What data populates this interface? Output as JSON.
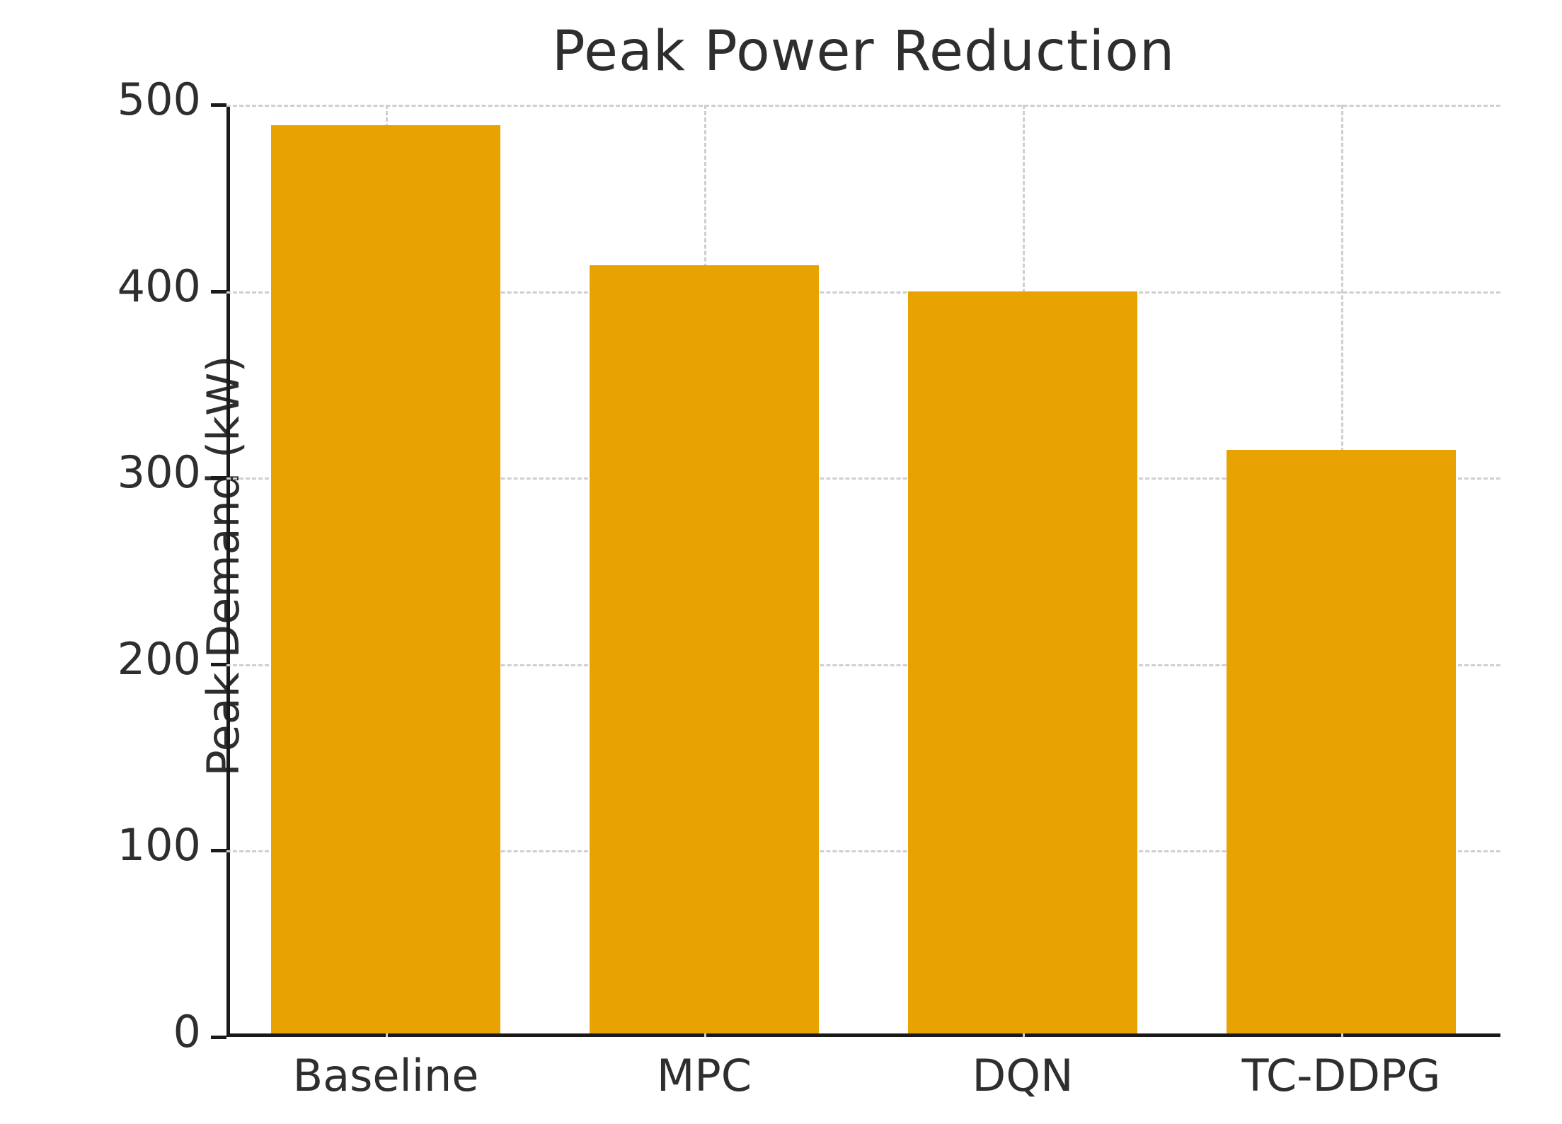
{
  "figure": {
    "title": "Peak Power Reduction",
    "ylabel": "Peak Demand (kW)"
  },
  "colors": {
    "bar": "#e8a202",
    "grid": "#cfcfcf",
    "axis": "#1a1a1a",
    "text": "#2e2e2e"
  },
  "chart_data": {
    "type": "bar",
    "title": "Peak Power Reduction",
    "xlabel": "",
    "ylabel": "Peak Demand (kW)",
    "categories": [
      "Baseline",
      "MPC",
      "DQN",
      "TC-DDPG"
    ],
    "values": [
      487,
      412,
      398,
      313
    ],
    "ylim": [
      0,
      500
    ],
    "yticks": [
      0,
      100,
      200,
      300,
      400,
      500
    ],
    "grid": "both-dashed",
    "legend_position": "none",
    "bar_color": "#e8a202"
  }
}
